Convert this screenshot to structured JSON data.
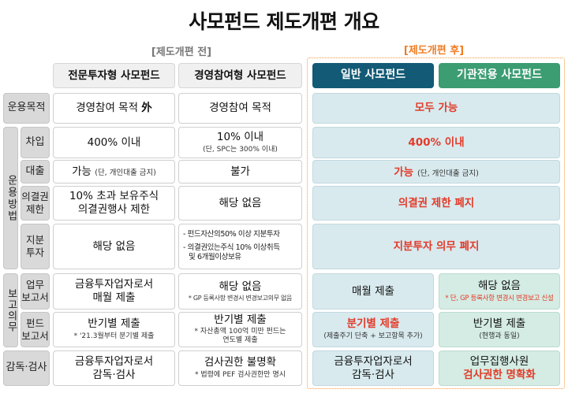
{
  "title": "사모펀드 제도개편 개요",
  "before_label": "[제도개편 전]",
  "after_label": "[제도개편 후]",
  "columns": {
    "col1": "전문투자형 사모펀드",
    "col2": "경영참여형 사모펀드",
    "col3": "일반 사모펀드",
    "col4": "기관전용 사모펀드"
  },
  "groups": {
    "operation_method": "운용방법",
    "reporting_duty": "보고의무"
  },
  "rows": {
    "purpose": {
      "label": "운용목적",
      "col1_prefix": "경영참여 목적 ",
      "col1_mark": "外",
      "col2": "경영참여 목적",
      "after": "모두 가능"
    },
    "borrow": {
      "label": "차입",
      "col1": "400% 이내",
      "col2": "10% 이내",
      "col2_note": "(단, SPC는 300% 이내)",
      "after": "400% 이내"
    },
    "loan": {
      "label": "대출",
      "col1": "가능",
      "col1_note": "(단, 개인대출 금지)",
      "col2": "불가",
      "after": "가능",
      "after_note": "(단, 개인대출 금지)"
    },
    "voting": {
      "label_line1": "의결권",
      "label_line2": "제한",
      "col1_line1": "10% 초과 보유주식",
      "col1_line2": "의결권행사 제한",
      "col2": "해당 없음",
      "after": "의결권 제한 폐지"
    },
    "equity": {
      "label_line1": "지분",
      "label_line2": "투자",
      "col1": "해당 없음",
      "col2_b1": "- 펀드자산의50% 이상 지분투자",
      "col2_b2a": "- 의결권있는주식 10% 이상취득",
      "col2_b2b": "및 6개월이상보유",
      "after": "지분투자 의무 폐지"
    },
    "business_report": {
      "label_line1": "업무",
      "label_line2": "보고서",
      "col1_line1": "금융투자업자로서",
      "col1_line2": "매월 제출",
      "col2": "해당 없음",
      "col2_note": "* GP 등록사항 변경시 변경보고의무 없음",
      "col3": "매월 제출",
      "col4": "해당 없음",
      "col4_note": "* 단, GP 등록사항 변경시 변경보고 신설"
    },
    "fund_report": {
      "label_line1": "펀드",
      "label_line2": "보고서",
      "col1": "반기별 제출",
      "col1_note": "* '21.3월부터 분기별 제출",
      "col2": "반기별 제출",
      "col2_note1": "* 자산총액 100억 미만 펀드는",
      "col2_note2": "연도별 제출",
      "col3": "분기별 제출",
      "col3_note": "(제출주기 단축 + 보고항목 추가)",
      "col4": "반기별 제출",
      "col4_note": "(현행과 동일)"
    },
    "supervision": {
      "label": "감독·검사",
      "col1_line1": "금융투자업자로서",
      "col1_line2": "감독·검사",
      "col2": "검사권한 불명확",
      "col2_note": "* 법령에 PEF 검사권한만 명시",
      "col3_line1": "금융투자업자로서",
      "col3_line2": "감독·검사",
      "col4_line1": "업무집행사원",
      "col4_line2": "검사권한 명확화"
    }
  },
  "colors": {
    "header_dark": "#125a75",
    "header_green": "#3c9c72",
    "after_frame": "#f39a3a",
    "highlight_red": "#e23b2a",
    "after_label": "#f07c22"
  }
}
